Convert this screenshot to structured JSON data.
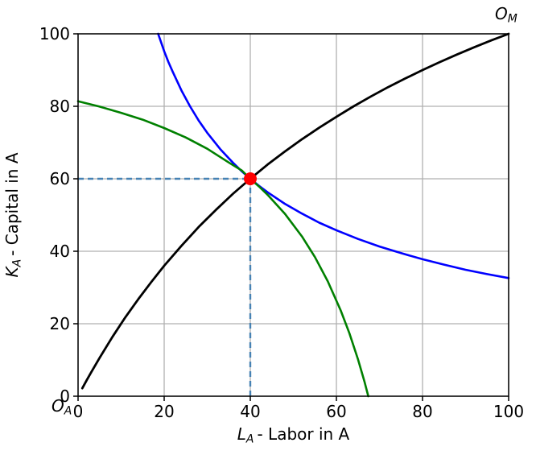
{
  "figure": {
    "background": "#ffffff",
    "grid_color": "#b0b0b0",
    "spine_color": "#000000",
    "text_color": "#000000"
  },
  "axes": {
    "xlabel": {
      "main": "L",
      "sub": "A",
      "rest": "- Labor in A"
    },
    "ylabel": {
      "main": "K",
      "sub": "A",
      "rest": "- Capital in A"
    }
  },
  "corner_labels": {
    "origin_a": {
      "main": "O",
      "sub": "A"
    },
    "origin_m": {
      "main": "O",
      "sub": "M"
    }
  },
  "chart_data": {
    "type": "line",
    "title": "",
    "xlabel": "L_A - Labor in A",
    "ylabel": "K_A - Capital in A",
    "xlim": [
      0,
      100
    ],
    "ylim": [
      0,
      100
    ],
    "xticks": [
      0,
      20,
      40,
      60,
      80,
      100
    ],
    "yticks": [
      0,
      20,
      40,
      60,
      80,
      100
    ],
    "grid": true,
    "legend": false,
    "series": [
      {
        "name": "contract-curve",
        "color": "#000000",
        "width": 2.8,
        "points": [
          [
            1,
            2.2
          ],
          [
            2,
            4.4
          ],
          [
            3,
            6.5
          ],
          [
            5,
            10.6
          ],
          [
            8,
            16.4
          ],
          [
            11,
            21.8
          ],
          [
            14,
            26.8
          ],
          [
            17,
            31.5
          ],
          [
            20,
            36
          ],
          [
            24,
            41.5
          ],
          [
            28,
            46.7
          ],
          [
            32,
            51.4
          ],
          [
            36,
            55.9
          ],
          [
            40,
            60
          ],
          [
            44,
            63.9
          ],
          [
            48,
            67.5
          ],
          [
            52,
            70.9
          ],
          [
            56,
            74.1
          ],
          [
            60,
            77.1
          ],
          [
            64,
            80
          ],
          [
            68,
            82.7
          ],
          [
            72,
            85.3
          ],
          [
            76,
            87.7
          ],
          [
            80,
            90
          ],
          [
            84,
            92.2
          ],
          [
            88,
            94.3
          ],
          [
            92,
            96.3
          ],
          [
            96,
            98.2
          ],
          [
            100,
            100
          ]
        ]
      },
      {
        "name": "isoquant-a",
        "color": "#0000ff",
        "width": 2.6,
        "points": [
          [
            18.6,
            100
          ],
          [
            19,
            98.6
          ],
          [
            20,
            95.2
          ],
          [
            21,
            92.2
          ],
          [
            22,
            89.5
          ],
          [
            24,
            84.4
          ],
          [
            26,
            80
          ],
          [
            28,
            76.1
          ],
          [
            30,
            72.7
          ],
          [
            33,
            68.2
          ],
          [
            36,
            64.4
          ],
          [
            38,
            62.1
          ],
          [
            40,
            60
          ],
          [
            42,
            58.1
          ],
          [
            44,
            56.3
          ],
          [
            48,
            53.1
          ],
          [
            52,
            50.4
          ],
          [
            56,
            47.9
          ],
          [
            60,
            45.8
          ],
          [
            65,
            43.4
          ],
          [
            70,
            41.3
          ],
          [
            75,
            39.5
          ],
          [
            80,
            37.8
          ],
          [
            85,
            36.3
          ],
          [
            90,
            34.9
          ],
          [
            95,
            33.7
          ],
          [
            100,
            32.6
          ]
        ]
      },
      {
        "name": "isoquant-m",
        "color": "#008000",
        "width": 2.6,
        "points": [
          [
            0,
            81.4
          ],
          [
            5,
            79.9
          ],
          [
            10,
            78.2
          ],
          [
            15,
            76.3
          ],
          [
            20,
            74
          ],
          [
            25,
            71.4
          ],
          [
            30,
            68.3
          ],
          [
            35,
            64.5
          ],
          [
            38,
            62.3
          ],
          [
            40,
            60
          ],
          [
            42,
            57.9
          ],
          [
            44,
            55.6
          ],
          [
            48,
            50.4
          ],
          [
            52,
            44.1
          ],
          [
            55,
            38.4
          ],
          [
            58,
            31.7
          ],
          [
            61,
            23.7
          ],
          [
            63,
            17.4
          ],
          [
            65,
            10.2
          ],
          [
            66.5,
            4.1
          ],
          [
            67.4,
            0
          ]
        ]
      }
    ],
    "equilibrium_point": {
      "x": 40,
      "y": 60,
      "color": "#ff0000",
      "radius": 8
    },
    "guides": {
      "x": 40,
      "y": 60,
      "color": "#4682b4",
      "dash": [
        7,
        5
      ],
      "width": 2.4
    }
  }
}
